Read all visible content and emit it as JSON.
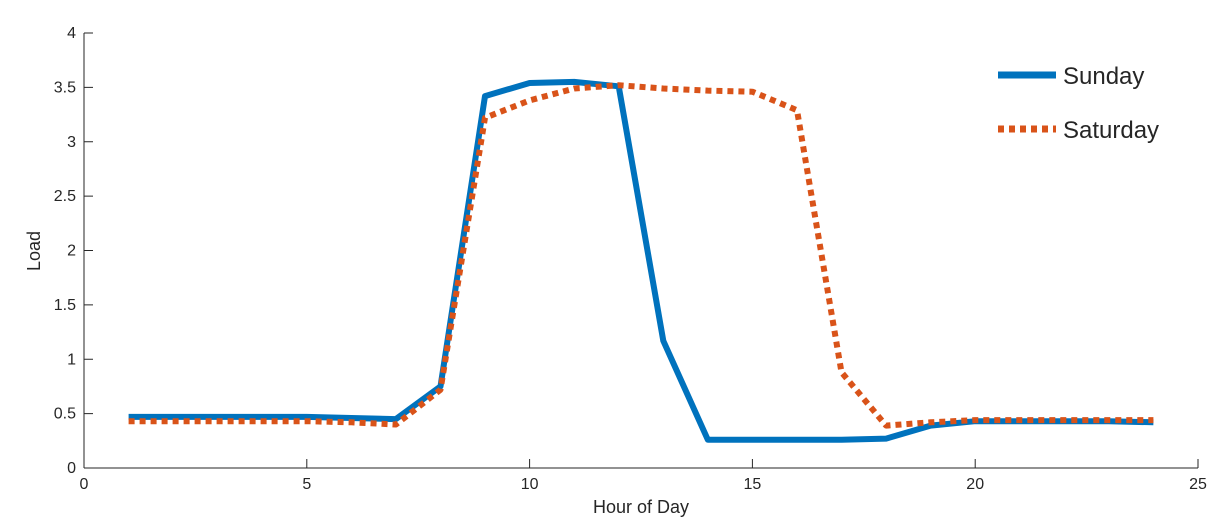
{
  "chart_data": {
    "type": "line",
    "title": "",
    "xlabel": "Hour of Day",
    "ylabel": "Load",
    "xlim": [
      0,
      25
    ],
    "ylim": [
      0,
      4
    ],
    "x_ticks": [
      "0",
      "5",
      "10",
      "15",
      "20",
      "25"
    ],
    "y_ticks": [
      "0",
      "0.5",
      "1",
      "1.5",
      "2",
      "2.5",
      "3",
      "3.5",
      "4"
    ],
    "grid": false,
    "legend_position": "top-right",
    "series": [
      {
        "name": "Sunday",
        "color": "#0072BD",
        "style": "solid",
        "x": [
          1,
          2,
          3,
          4,
          5,
          6,
          7,
          8,
          9,
          10,
          11,
          12,
          13,
          14,
          15,
          16,
          17,
          18,
          19,
          20,
          21,
          22,
          23,
          24
        ],
        "y": [
          0.47,
          0.47,
          0.47,
          0.47,
          0.47,
          0.46,
          0.45,
          0.75,
          3.42,
          3.54,
          3.55,
          3.51,
          1.17,
          0.26,
          0.26,
          0.26,
          0.26,
          0.27,
          0.39,
          0.43,
          0.43,
          0.43,
          0.43,
          0.42
        ]
      },
      {
        "name": "Saturday",
        "color": "#D95319",
        "style": "dotted",
        "x": [
          1,
          2,
          3,
          4,
          5,
          6,
          7,
          8,
          9,
          10,
          11,
          12,
          13,
          14,
          15,
          16,
          17,
          18,
          19,
          20,
          21,
          22,
          23,
          24
        ],
        "y": [
          0.43,
          0.43,
          0.43,
          0.43,
          0.43,
          0.42,
          0.4,
          0.72,
          3.22,
          3.38,
          3.49,
          3.52,
          3.49,
          3.47,
          3.46,
          3.29,
          0.88,
          0.39,
          0.42,
          0.44,
          0.44,
          0.44,
          0.44,
          0.44
        ]
      }
    ]
  }
}
